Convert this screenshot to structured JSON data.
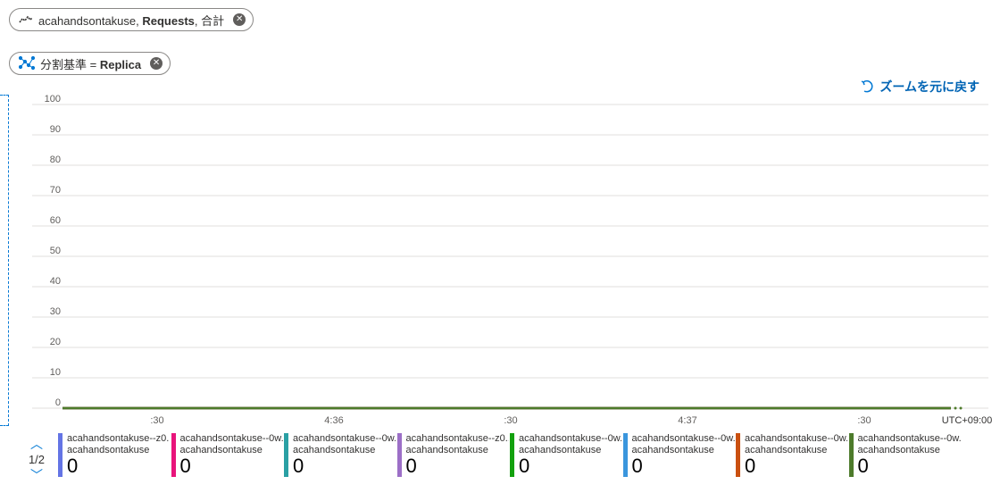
{
  "filters": {
    "metric_pill": {
      "resource": "acahandsontakuse, ",
      "metric": "Requests",
      "agg": ", 合計",
      "icon": "line-chart-icon"
    },
    "split_pill": {
      "label": "分割基準 = ",
      "value": "Replica",
      "icon": "scatter-network-icon"
    }
  },
  "reset_zoom_label": "ズームを元に戻す",
  "timezone_label": "UTC+09:00",
  "pager": {
    "label": "1/2"
  },
  "colors": {
    "accent": "#0078d4",
    "line": "#4d7b2b",
    "grid": "#e1dfdd"
  },
  "chart_data": {
    "type": "line",
    "x": [
      ":30",
      "4:36",
      ":30",
      "4:37",
      ":30"
    ],
    "ylim": [
      0,
      100
    ],
    "yticks": [
      "100",
      "90",
      "80",
      "70",
      "60",
      "50",
      "40",
      "30",
      "20",
      "10",
      "0"
    ],
    "series": [
      {
        "name": "acahandsontakuse--z0...",
        "color": "#6474e5",
        "values": [
          0,
          0,
          0,
          0,
          0
        ]
      },
      {
        "name": "acahandsontakuse--0w...",
        "color": "#e8147b",
        "values": [
          0,
          0,
          0,
          0,
          0
        ]
      },
      {
        "name": "acahandsontakuse--0w...",
        "color": "#2aa0a4",
        "values": [
          0,
          0,
          0,
          0,
          0
        ]
      },
      {
        "name": "acahandsontakuse--z0...",
        "color": "#9c6fc7",
        "values": [
          0,
          0,
          0,
          0,
          0
        ]
      },
      {
        "name": "acahandsontakuse--0w...",
        "color": "#13a10e",
        "values": [
          0,
          0,
          0,
          0,
          0
        ]
      },
      {
        "name": "acahandsontakuse--0w...",
        "color": "#3a96dd",
        "values": [
          0,
          0,
          0,
          0,
          0
        ]
      },
      {
        "name": "acahandsontakuse--0w...",
        "color": "#ca5010",
        "values": [
          0,
          0,
          0,
          0,
          0
        ]
      },
      {
        "name": "acahandsontakuse--0w...",
        "color": "#4d7b2b",
        "values": [
          0,
          0,
          0,
          0,
          0
        ]
      }
    ]
  },
  "legend": [
    {
      "name": "acahandsontakuse--z0...",
      "resource": "acahandsontakuse",
      "value": "0",
      "color": "#6474e5"
    },
    {
      "name": "acahandsontakuse--0w...",
      "resource": "acahandsontakuse",
      "value": "0",
      "color": "#e8147b"
    },
    {
      "name": "acahandsontakuse--0w...",
      "resource": "acahandsontakuse",
      "value": "0",
      "color": "#2aa0a4"
    },
    {
      "name": "acahandsontakuse--z0...",
      "resource": "acahandsontakuse",
      "value": "0",
      "color": "#9c6fc7"
    },
    {
      "name": "acahandsontakuse--0w...",
      "resource": "acahandsontakuse",
      "value": "0",
      "color": "#13a10e"
    },
    {
      "name": "acahandsontakuse--0w...",
      "resource": "acahandsontakuse",
      "value": "0",
      "color": "#3a96dd"
    },
    {
      "name": "acahandsontakuse--0w...",
      "resource": "acahandsontakuse",
      "value": "0",
      "color": "#ca5010"
    },
    {
      "name": "acahandsontakuse--0w...",
      "resource": "acahandsontakuse",
      "value": "0",
      "color": "#4d7b2b"
    }
  ]
}
